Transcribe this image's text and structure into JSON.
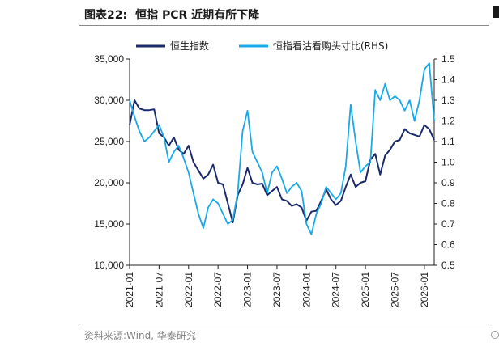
{
  "figure": {
    "label": "图表22:",
    "title": "恒指 PCR 近期有所下降",
    "source": "资料来源:Wind, 华泰研究"
  },
  "colors": {
    "series_left": "#1b2a6b",
    "series_right": "#18a9e8",
    "axis": "#222222"
  },
  "chart_data": {
    "type": "line",
    "title": "",
    "xlabel": "",
    "ylabel": "",
    "y2label": "",
    "x_ticks": [
      "2021-01",
      "2021-07",
      "2022-01",
      "2022-07",
      "2023-01",
      "2023-07",
      "2024-01",
      "2024-07",
      "2025-01",
      "2025-07",
      "2026-01"
    ],
    "xlim": [
      "2021-01",
      "2026-03"
    ],
    "ylim": [
      10000,
      35000
    ],
    "y_ticks": [
      "10,000",
      "15,000",
      "20,000",
      "25,000",
      "30,000",
      "35,000"
    ],
    "y2lim": [
      0.5,
      1.5
    ],
    "y2_ticks": [
      "0.5",
      "0.6",
      "0.7",
      "0.8",
      "0.9",
      "1.0",
      "1.1",
      "1.2",
      "1.3",
      "1.4",
      "1.5"
    ],
    "grid": false,
    "legend_position": "top",
    "series": [
      {
        "name": "恒生指数",
        "axis": "left",
        "points": [
          [
            "2021-01",
            27000
          ],
          [
            "2021-02",
            30000
          ],
          [
            "2021-03",
            29000
          ],
          [
            "2021-04",
            28800
          ],
          [
            "2021-05",
            28800
          ],
          [
            "2021-06",
            28900
          ],
          [
            "2021-07",
            26000
          ],
          [
            "2021-08",
            25500
          ],
          [
            "2021-09",
            24500
          ],
          [
            "2021-10",
            25500
          ],
          [
            "2021-11",
            24000
          ],
          [
            "2021-12",
            23500
          ],
          [
            "2022-01",
            24500
          ],
          [
            "2022-02",
            22500
          ],
          [
            "2022-03",
            21500
          ],
          [
            "2022-04",
            20500
          ],
          [
            "2022-05",
            21000
          ],
          [
            "2022-06",
            22200
          ],
          [
            "2022-07",
            20000
          ],
          [
            "2022-08",
            19800
          ],
          [
            "2022-09",
            17500
          ],
          [
            "2022-10",
            15200
          ],
          [
            "2022-11",
            18500
          ],
          [
            "2022-12",
            19800
          ],
          [
            "2023-01",
            21800
          ],
          [
            "2023-02",
            20000
          ],
          [
            "2023-03",
            19800
          ],
          [
            "2023-04",
            19900
          ],
          [
            "2023-05",
            18500
          ],
          [
            "2023-06",
            19000
          ],
          [
            "2023-07",
            19500
          ],
          [
            "2023-08",
            18000
          ],
          [
            "2023-09",
            17800
          ],
          [
            "2023-10",
            17200
          ],
          [
            "2023-11",
            17400
          ],
          [
            "2023-12",
            17000
          ],
          [
            "2024-01",
            15400
          ],
          [
            "2024-02",
            16500
          ],
          [
            "2024-03",
            16600
          ],
          [
            "2024-04",
            17800
          ],
          [
            "2024-05",
            19200
          ],
          [
            "2024-06",
            18000
          ],
          [
            "2024-07",
            17300
          ],
          [
            "2024-08",
            17800
          ],
          [
            "2024-09",
            19500
          ],
          [
            "2024-10",
            21000
          ],
          [
            "2024-11",
            19500
          ],
          [
            "2024-12",
            20000
          ],
          [
            "2025-01",
            20200
          ],
          [
            "2025-02",
            22800
          ],
          [
            "2025-03",
            23500
          ],
          [
            "2025-04",
            21000
          ],
          [
            "2025-05",
            23300
          ],
          [
            "2025-06",
            24000
          ],
          [
            "2025-07",
            25000
          ],
          [
            "2025-08",
            25200
          ],
          [
            "2025-09",
            26500
          ],
          [
            "2025-10",
            26000
          ],
          [
            "2025-11",
            25800
          ],
          [
            "2025-12",
            25600
          ],
          [
            "2026-01",
            27000
          ],
          [
            "2026-02",
            26500
          ],
          [
            "2026-03",
            25200
          ]
        ]
      },
      {
        "name": "恒指看沽看购头寸比(RHS)",
        "axis": "right",
        "points": [
          [
            "2021-01",
            1.3
          ],
          [
            "2021-02",
            1.22
          ],
          [
            "2021-03",
            1.15
          ],
          [
            "2021-04",
            1.1
          ],
          [
            "2021-05",
            1.12
          ],
          [
            "2021-06",
            1.15
          ],
          [
            "2021-07",
            1.18
          ],
          [
            "2021-08",
            1.12
          ],
          [
            "2021-09",
            1.0
          ],
          [
            "2021-10",
            1.05
          ],
          [
            "2021-11",
            1.08
          ],
          [
            "2021-12",
            1.02
          ],
          [
            "2022-01",
            0.95
          ],
          [
            "2022-02",
            0.85
          ],
          [
            "2022-03",
            0.75
          ],
          [
            "2022-04",
            0.68
          ],
          [
            "2022-05",
            0.78
          ],
          [
            "2022-06",
            0.82
          ],
          [
            "2022-07",
            0.8
          ],
          [
            "2022-08",
            0.75
          ],
          [
            "2022-09",
            0.7
          ],
          [
            "2022-10",
            0.72
          ],
          [
            "2022-11",
            0.85
          ],
          [
            "2022-12",
            1.15
          ],
          [
            "2023-01",
            1.25
          ],
          [
            "2023-02",
            1.05
          ],
          [
            "2023-03",
            1.0
          ],
          [
            "2023-04",
            0.95
          ],
          [
            "2023-05",
            0.85
          ],
          [
            "2023-06",
            0.95
          ],
          [
            "2023-07",
            0.98
          ],
          [
            "2023-08",
            0.92
          ],
          [
            "2023-09",
            0.85
          ],
          [
            "2023-10",
            0.88
          ],
          [
            "2023-11",
            0.9
          ],
          [
            "2023-12",
            0.86
          ],
          [
            "2024-01",
            0.7
          ],
          [
            "2024-02",
            0.65
          ],
          [
            "2024-03",
            0.75
          ],
          [
            "2024-04",
            0.8
          ],
          [
            "2024-05",
            0.88
          ],
          [
            "2024-06",
            0.85
          ],
          [
            "2024-07",
            0.82
          ],
          [
            "2024-08",
            0.85
          ],
          [
            "2024-09",
            0.98
          ],
          [
            "2024-10",
            1.28
          ],
          [
            "2024-11",
            1.1
          ],
          [
            "2024-12",
            0.95
          ],
          [
            "2025-01",
            0.98
          ],
          [
            "2025-02",
            1.0
          ],
          [
            "2025-03",
            1.35
          ],
          [
            "2025-04",
            1.3
          ],
          [
            "2025-05",
            1.38
          ],
          [
            "2025-06",
            1.3
          ],
          [
            "2025-07",
            1.32
          ],
          [
            "2025-08",
            1.3
          ],
          [
            "2025-09",
            1.25
          ],
          [
            "2025-10",
            1.3
          ],
          [
            "2025-11",
            1.2
          ],
          [
            "2025-12",
            1.3
          ],
          [
            "2026-01",
            1.45
          ],
          [
            "2026-02",
            1.48
          ],
          [
            "2026-03",
            1.2
          ]
        ]
      }
    ]
  }
}
